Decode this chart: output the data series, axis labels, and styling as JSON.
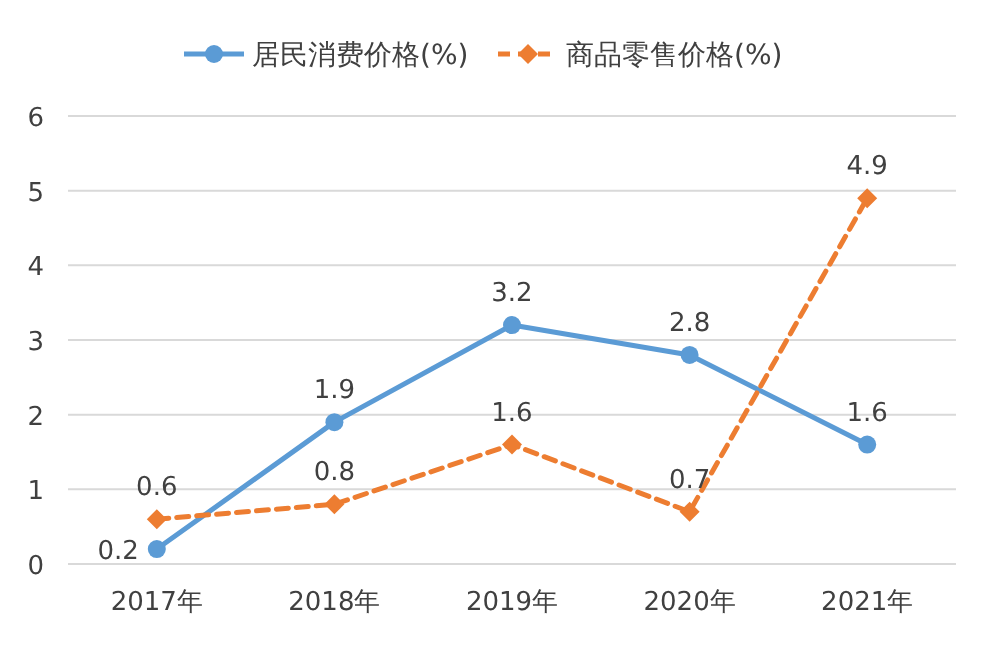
{
  "chart_data": {
    "type": "line",
    "categories": [
      "2017年",
      "2018年",
      "2019年",
      "2020年",
      "2021年"
    ],
    "series": [
      {
        "name": "居民消费价格(%)",
        "color": "#5b9bd5",
        "values": [
          0.2,
          1.9,
          3.2,
          2.8,
          1.6
        ],
        "marker": "circle",
        "line_style": "solid"
      },
      {
        "name": "商品零售价格(%)",
        "color": "#ed7d31",
        "values": [
          0.6,
          0.8,
          1.6,
          0.7,
          4.9
        ],
        "marker": "diamond",
        "line_style": "dashed"
      }
    ],
    "ylim": [
      0,
      6
    ],
    "yticks": [
      0,
      1,
      2,
      3,
      4,
      5,
      6
    ],
    "grid": "y",
    "legend": "top",
    "data_labels": true
  }
}
